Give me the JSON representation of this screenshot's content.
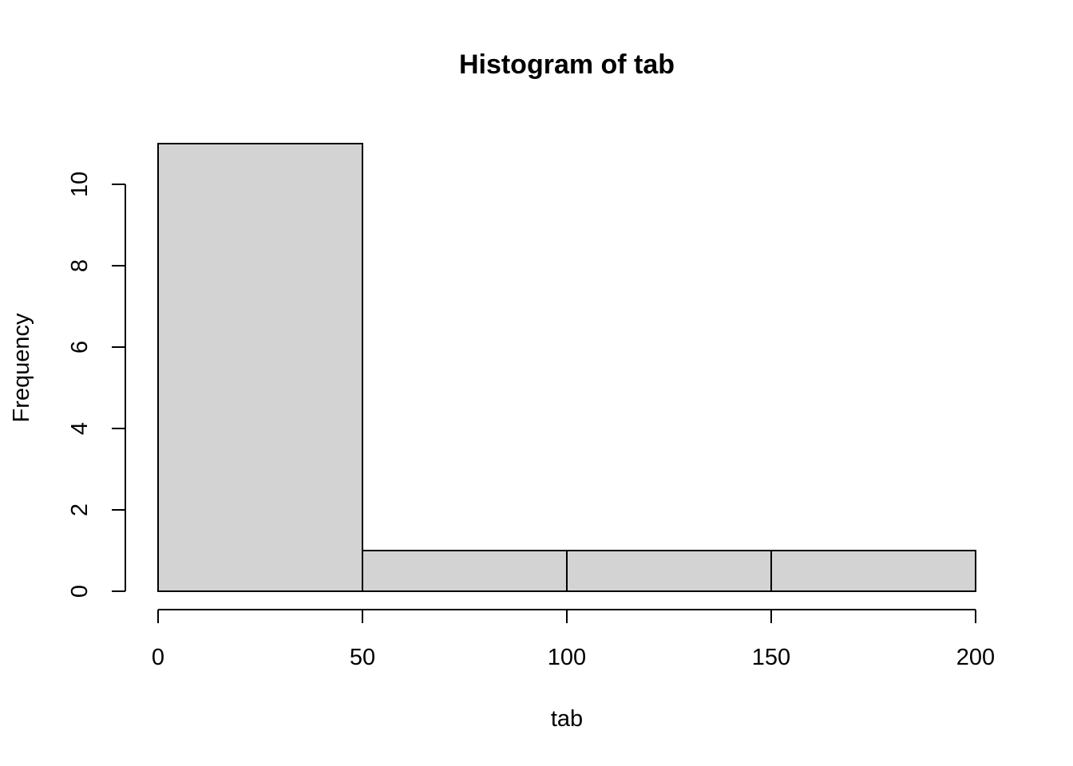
{
  "chart_data": {
    "type": "bar",
    "title": "Histogram of tab",
    "xlabel": "tab",
    "ylabel": "Frequency",
    "bins": [
      {
        "start": 0,
        "end": 50,
        "count": 11
      },
      {
        "start": 50,
        "end": 100,
        "count": 1
      },
      {
        "start": 100,
        "end": 150,
        "count": 1
      },
      {
        "start": 150,
        "end": 200,
        "count": 1
      }
    ],
    "xlim": [
      0,
      200
    ],
    "ylim": [
      0,
      10
    ],
    "x_ticks": [
      0,
      50,
      100,
      150,
      200
    ],
    "y_ticks": [
      0,
      2,
      4,
      6,
      8,
      10
    ],
    "grid": false,
    "legend": "none",
    "colors": {
      "bar_fill": "#d3d3d3",
      "bar_stroke": "#000000"
    }
  }
}
